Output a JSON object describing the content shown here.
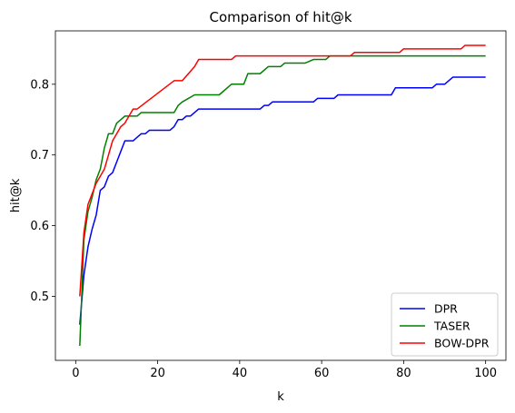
{
  "chart_data": {
    "type": "line",
    "title": "Comparison of hit@k",
    "xlabel": "k",
    "ylabel": "hit@k",
    "xlim": [
      -4.95,
      104.95
    ],
    "ylim": [
      0.4095,
      0.8755
    ],
    "xticks": [
      0,
      20,
      40,
      60,
      80,
      100
    ],
    "yticks": [
      0.5,
      0.6,
      0.7,
      0.8
    ],
    "xtick_labels": [
      "0",
      "20",
      "40",
      "60",
      "80",
      "100"
    ],
    "ytick_labels": [
      "0.5",
      "0.6",
      "0.7",
      "0.8"
    ],
    "grid": false,
    "legend_position": "lower-right",
    "series": [
      {
        "name": "DPR",
        "color": "#0000ff",
        "points": [
          [
            1,
            0.46
          ],
          [
            2,
            0.53
          ],
          [
            3,
            0.57
          ],
          [
            4,
            0.595
          ],
          [
            5,
            0.615
          ],
          [
            6,
            0.65
          ],
          [
            7,
            0.655
          ],
          [
            8,
            0.67
          ],
          [
            9,
            0.675
          ],
          [
            10,
            0.69
          ],
          [
            11,
            0.705
          ],
          [
            12,
            0.72
          ],
          [
            14,
            0.72
          ],
          [
            15,
            0.725
          ],
          [
            16,
            0.73
          ],
          [
            17,
            0.73
          ],
          [
            18,
            0.735
          ],
          [
            23,
            0.735
          ],
          [
            24,
            0.74
          ],
          [
            25,
            0.75
          ],
          [
            26,
            0.75
          ],
          [
            27,
            0.755
          ],
          [
            28,
            0.755
          ],
          [
            29,
            0.76
          ],
          [
            30,
            0.765
          ],
          [
            45,
            0.765
          ],
          [
            46,
            0.77
          ],
          [
            47,
            0.77
          ],
          [
            48,
            0.775
          ],
          [
            58,
            0.775
          ],
          [
            59,
            0.78
          ],
          [
            63,
            0.78
          ],
          [
            64,
            0.785
          ],
          [
            77,
            0.785
          ],
          [
            78,
            0.795
          ],
          [
            87,
            0.795
          ],
          [
            88,
            0.8
          ],
          [
            90,
            0.8
          ],
          [
            92,
            0.81
          ],
          [
            100,
            0.81
          ]
        ]
      },
      {
        "name": "TASER",
        "color": "#008000",
        "points": [
          [
            1,
            0.43
          ],
          [
            2,
            0.58
          ],
          [
            3,
            0.62
          ],
          [
            4,
            0.64
          ],
          [
            5,
            0.665
          ],
          [
            6,
            0.68
          ],
          [
            7,
            0.71
          ],
          [
            8,
            0.73
          ],
          [
            9,
            0.73
          ],
          [
            10,
            0.745
          ],
          [
            11,
            0.75
          ],
          [
            12,
            0.755
          ],
          [
            15,
            0.755
          ],
          [
            16,
            0.76
          ],
          [
            24,
            0.76
          ],
          [
            25,
            0.77
          ],
          [
            26,
            0.775
          ],
          [
            29,
            0.785
          ],
          [
            35,
            0.785
          ],
          [
            38,
            0.8
          ],
          [
            41,
            0.8
          ],
          [
            42,
            0.815
          ],
          [
            45,
            0.815
          ],
          [
            47,
            0.825
          ],
          [
            50,
            0.825
          ],
          [
            51,
            0.83
          ],
          [
            56,
            0.83
          ],
          [
            58,
            0.835
          ],
          [
            61,
            0.835
          ],
          [
            62,
            0.84
          ],
          [
            100,
            0.84
          ]
        ]
      },
      {
        "name": "BOW-DPR",
        "color": "#ff0000",
        "points": [
          [
            1,
            0.5
          ],
          [
            2,
            0.59
          ],
          [
            3,
            0.63
          ],
          [
            4,
            0.645
          ],
          [
            5,
            0.66
          ],
          [
            6,
            0.67
          ],
          [
            7,
            0.68
          ],
          [
            8,
            0.7
          ],
          [
            9,
            0.72
          ],
          [
            10,
            0.73
          ],
          [
            11,
            0.74
          ],
          [
            12,
            0.745
          ],
          [
            13,
            0.755
          ],
          [
            14,
            0.765
          ],
          [
            15,
            0.765
          ],
          [
            24,
            0.805
          ],
          [
            26,
            0.805
          ],
          [
            29,
            0.825
          ],
          [
            30,
            0.835
          ],
          [
            38,
            0.835
          ],
          [
            39,
            0.84
          ],
          [
            62,
            0.84
          ],
          [
            63,
            0.84
          ],
          [
            67,
            0.84
          ],
          [
            68,
            0.845
          ],
          [
            79,
            0.845
          ],
          [
            80,
            0.85
          ],
          [
            94,
            0.85
          ],
          [
            95,
            0.855
          ],
          [
            100,
            0.855
          ]
        ]
      }
    ]
  }
}
